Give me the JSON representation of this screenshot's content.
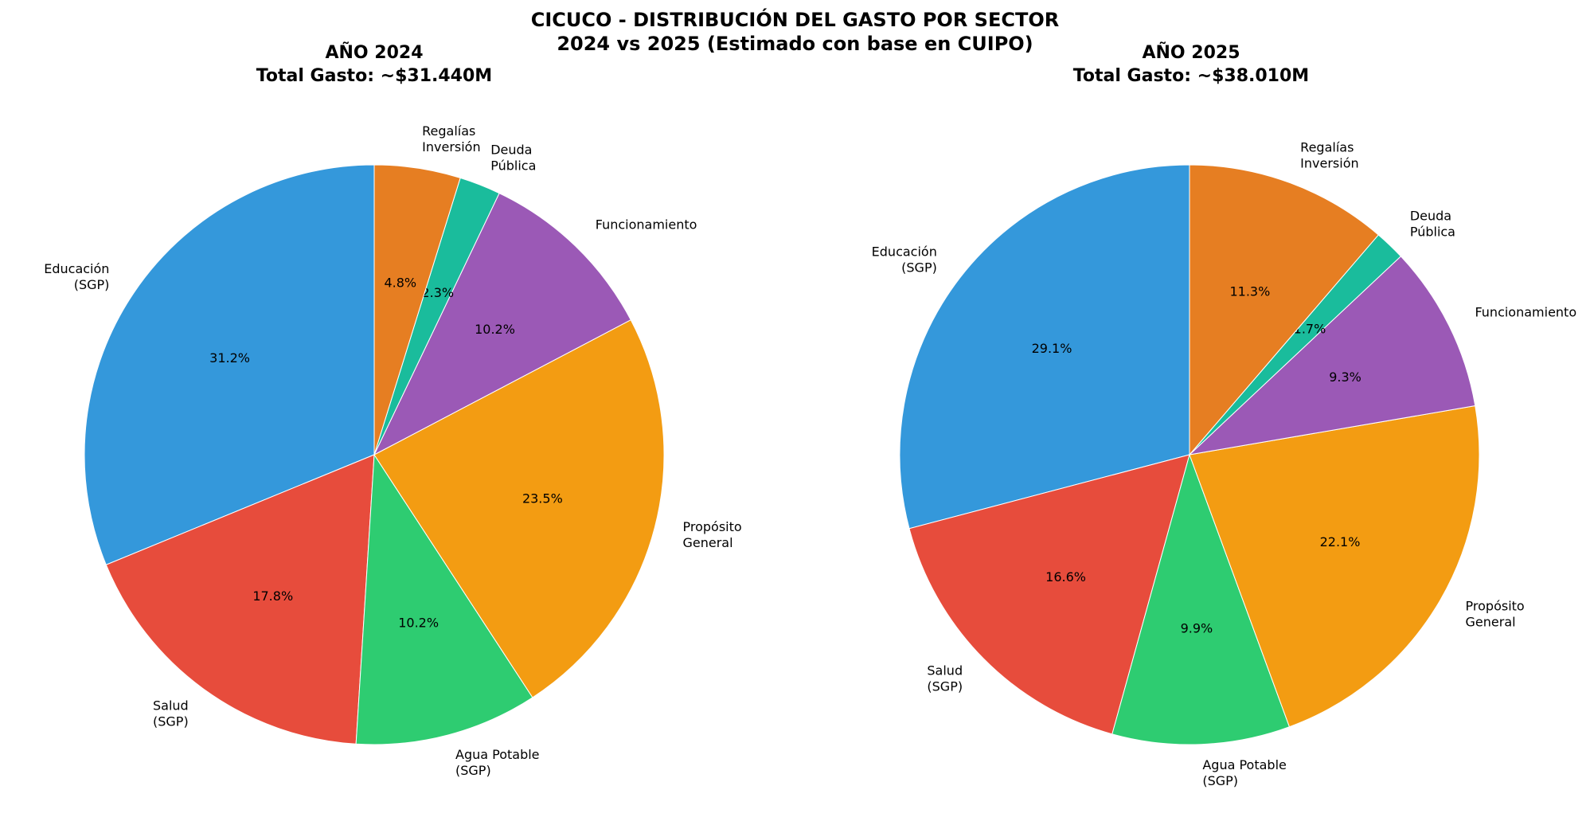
{
  "figure": {
    "title_line1": "CICUCO - DISTRIBUCIÓN DEL GASTO POR SECTOR",
    "title_line2": "2024 vs 2025 (Estimado con base en CUIPO)"
  },
  "chart_data": [
    {
      "type": "pie",
      "title": "AÑO 2024",
      "subtitle": "Total Gasto: ~$31.440M",
      "start_angle_deg": 90,
      "direction": "counterclockwise",
      "slices": [
        {
          "label": [
            "Educación",
            "(SGP)"
          ],
          "value": 31.2,
          "pct_label": "31.2%",
          "color": "#3498db"
        },
        {
          "label": [
            "Salud",
            "(SGP)"
          ],
          "value": 17.8,
          "pct_label": "17.8%",
          "color": "#e74c3c"
        },
        {
          "label": [
            "Agua Potable",
            "(SGP)"
          ],
          "value": 10.2,
          "pct_label": "10.2%",
          "color": "#2ecc71"
        },
        {
          "label": [
            "Propósito",
            "General"
          ],
          "value": 23.5,
          "pct_label": "23.5%",
          "color": "#f39c12"
        },
        {
          "label": [
            "Funcionamiento"
          ],
          "value": 10.2,
          "pct_label": "10.2%",
          "color": "#9b59b6"
        },
        {
          "label": [
            "Deuda",
            "Pública"
          ],
          "value": 2.3,
          "pct_label": "2.3%",
          "color": "#1abc9c"
        },
        {
          "label": [
            "Regalías",
            "Inversión"
          ],
          "value": 4.8,
          "pct_label": "4.8%",
          "color": "#e67e22"
        }
      ]
    },
    {
      "type": "pie",
      "title": "AÑO 2025",
      "subtitle": "Total Gasto: ~$38.010M",
      "start_angle_deg": 90,
      "direction": "counterclockwise",
      "slices": [
        {
          "label": [
            "Educación",
            "(SGP)"
          ],
          "value": 29.1,
          "pct_label": "29.1%",
          "color": "#3498db"
        },
        {
          "label": [
            "Salud",
            "(SGP)"
          ],
          "value": 16.6,
          "pct_label": "16.6%",
          "color": "#e74c3c"
        },
        {
          "label": [
            "Agua Potable",
            "(SGP)"
          ],
          "value": 9.9,
          "pct_label": "9.9%",
          "color": "#2ecc71"
        },
        {
          "label": [
            "Propósito",
            "General"
          ],
          "value": 22.1,
          "pct_label": "22.1%",
          "color": "#f39c12"
        },
        {
          "label": [
            "Funcionamiento"
          ],
          "value": 9.3,
          "pct_label": "9.3%",
          "color": "#9b59b6"
        },
        {
          "label": [
            "Deuda",
            "Pública"
          ],
          "value": 1.7,
          "pct_label": "1.7%",
          "color": "#1abc9c"
        },
        {
          "label": [
            "Regalías",
            "Inversión"
          ],
          "value": 11.3,
          "pct_label": "11.3%",
          "color": "#e67e22"
        }
      ]
    }
  ]
}
